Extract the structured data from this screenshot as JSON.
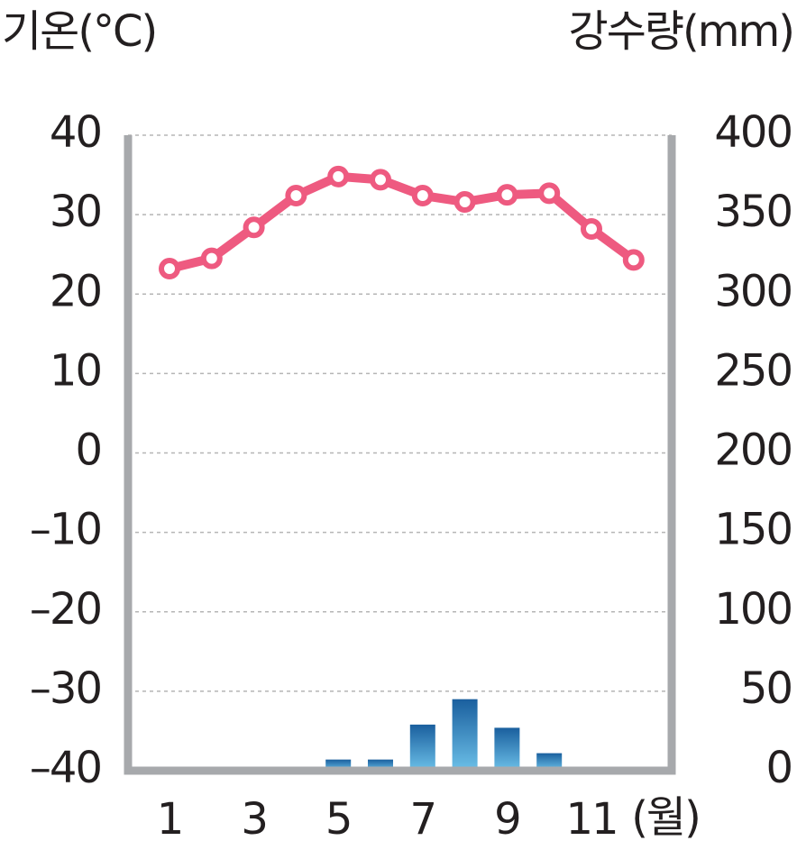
{
  "chart_data": {
    "type": "climate",
    "y_label": "기온(°C)",
    "y2_label": "강수량(mm)",
    "x_label": "(월)",
    "categories": [
      1,
      null,
      3,
      null,
      5,
      null,
      7,
      null,
      9,
      null,
      11,
      null
    ],
    "series": [
      {
        "name": "기온",
        "type": "line",
        "color": "#ee5a80",
        "values": [
          23.2,
          24.5,
          28.4,
          32.4,
          34.8,
          34.4,
          32.4,
          31.6,
          32.5,
          32.7,
          28.2,
          24.3
        ]
      },
      {
        "name": "강수량",
        "type": "bar",
        "axis": "y2",
        "color": "#2b8dc8",
        "values": [
          0,
          0,
          1,
          0,
          7,
          7,
          29,
          45,
          27,
          11,
          1,
          0
        ]
      }
    ],
    "ylim": [
      -40,
      40
    ],
    "yticks": [
      {
        "value": -40,
        "label": "–40"
      },
      {
        "value": -30,
        "label": "–30"
      },
      {
        "value": -20,
        "label": "–20"
      },
      {
        "value": -10,
        "label": "–10"
      },
      0,
      10,
      20,
      30,
      40
    ],
    "y2lim": [
      0,
      400
    ],
    "y2ticks": [
      0,
      50,
      100,
      150,
      200,
      250,
      300,
      350,
      400
    ],
    "grid": true
  }
}
